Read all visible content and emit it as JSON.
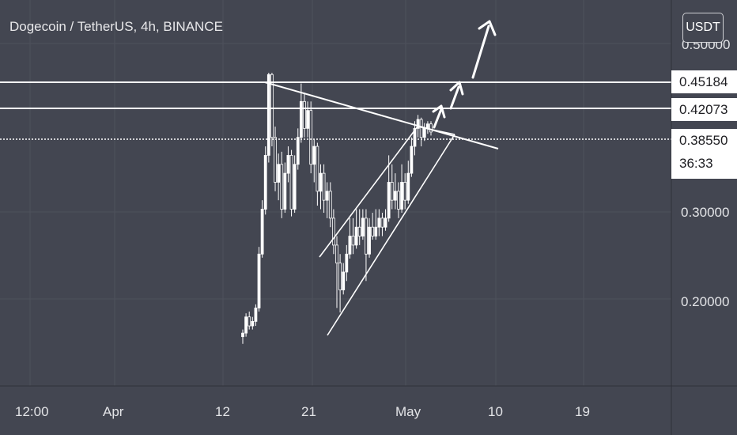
{
  "title": "Dogecoin / TetherUS, 4h, BINANCE",
  "currency": "USDT",
  "price_labels": {
    "level_top": "0.45184",
    "level_mid": "0.42073",
    "current": "0.38550",
    "countdown": "36:33"
  },
  "colors": {
    "background": "#434651",
    "grid": "#4e515c",
    "candle": "#ffffff",
    "drawings": "#ffffff"
  },
  "chart_data": {
    "type": "candlestick",
    "title": "Dogecoin / TetherUS, 4h, BINANCE",
    "y_ticks": [
      "0.20000",
      "0.30000",
      "0.38550",
      "0.42073",
      "0.45184"
    ],
    "x_ticks": [
      "12:00",
      "Apr",
      "12",
      "21",
      "May",
      "10",
      "19"
    ],
    "horizontal_levels": [
      0.45184,
      0.42073
    ],
    "current_price": 0.3855,
    "candles": [
      [
        0.158,
        0.162,
        0.15,
        0.166
      ],
      [
        0.162,
        0.18,
        0.158,
        0.184
      ],
      [
        0.18,
        0.17,
        0.166,
        0.186
      ],
      [
        0.17,
        0.175,
        0.166,
        0.18
      ],
      [
        0.175,
        0.19,
        0.17,
        0.194
      ],
      [
        0.19,
        0.25,
        0.186,
        0.258
      ],
      [
        0.25,
        0.3,
        0.246,
        0.31
      ],
      [
        0.3,
        0.36,
        0.294,
        0.37
      ],
      [
        0.36,
        0.45,
        0.352,
        0.452
      ],
      [
        0.45,
        0.38,
        0.37,
        0.452
      ],
      [
        0.38,
        0.33,
        0.32,
        0.392
      ],
      [
        0.33,
        0.35,
        0.31,
        0.362
      ],
      [
        0.35,
        0.3,
        0.29,
        0.364
      ],
      [
        0.3,
        0.34,
        0.296,
        0.352
      ],
      [
        0.34,
        0.36,
        0.33,
        0.37
      ],
      [
        0.36,
        0.3,
        0.292,
        0.366
      ],
      [
        0.3,
        0.35,
        0.296,
        0.36
      ],
      [
        0.35,
        0.38,
        0.344,
        0.39
      ],
      [
        0.38,
        0.42,
        0.374,
        0.44
      ],
      [
        0.42,
        0.39,
        0.38,
        0.43
      ],
      [
        0.39,
        0.41,
        0.38,
        0.42
      ],
      [
        0.41,
        0.35,
        0.34,
        0.42
      ],
      [
        0.35,
        0.37,
        0.33,
        0.378
      ],
      [
        0.37,
        0.32,
        0.304,
        0.374
      ],
      [
        0.32,
        0.34,
        0.3,
        0.35
      ],
      [
        0.34,
        0.31,
        0.296,
        0.35
      ],
      [
        0.31,
        0.32,
        0.29,
        0.33
      ],
      [
        0.32,
        0.29,
        0.28,
        0.33
      ],
      [
        0.29,
        0.26,
        0.25,
        0.3
      ],
      [
        0.26,
        0.24,
        0.19,
        0.27
      ],
      [
        0.24,
        0.21,
        0.185,
        0.25
      ],
      [
        0.21,
        0.23,
        0.205,
        0.24
      ],
      [
        0.23,
        0.25,
        0.22,
        0.26
      ],
      [
        0.25,
        0.27,
        0.245,
        0.29
      ],
      [
        0.27,
        0.26,
        0.25,
        0.29
      ],
      [
        0.26,
        0.28,
        0.256,
        0.3
      ],
      [
        0.28,
        0.27,
        0.26,
        0.3
      ],
      [
        0.27,
        0.29,
        0.266,
        0.3
      ],
      [
        0.29,
        0.25,
        0.22,
        0.3
      ],
      [
        0.25,
        0.28,
        0.246,
        0.29
      ],
      [
        0.28,
        0.27,
        0.266,
        0.296
      ],
      [
        0.27,
        0.28,
        0.266,
        0.3
      ],
      [
        0.28,
        0.29,
        0.27,
        0.3
      ],
      [
        0.29,
        0.28,
        0.27,
        0.296
      ],
      [
        0.28,
        0.29,
        0.276,
        0.3
      ],
      [
        0.29,
        0.33,
        0.286,
        0.36
      ],
      [
        0.33,
        0.31,
        0.3,
        0.35
      ],
      [
        0.31,
        0.32,
        0.3,
        0.34
      ],
      [
        0.32,
        0.3,
        0.29,
        0.33
      ],
      [
        0.3,
        0.33,
        0.296,
        0.35
      ],
      [
        0.33,
        0.31,
        0.3,
        0.34
      ],
      [
        0.31,
        0.34,
        0.306,
        0.354
      ],
      [
        0.34,
        0.37,
        0.336,
        0.38
      ],
      [
        0.37,
        0.39,
        0.36,
        0.398
      ],
      [
        0.39,
        0.4,
        0.38,
        0.405
      ],
      [
        0.4,
        0.38,
        0.37,
        0.402
      ],
      [
        0.38,
        0.39,
        0.376,
        0.396
      ],
      [
        0.39,
        0.395,
        0.384,
        0.398
      ],
      [
        0.395,
        0.386,
        0.382,
        0.398
      ]
    ],
    "drawings": [
      "descending resistance trendline",
      "rising wedge channel",
      "breakout arrows"
    ]
  }
}
